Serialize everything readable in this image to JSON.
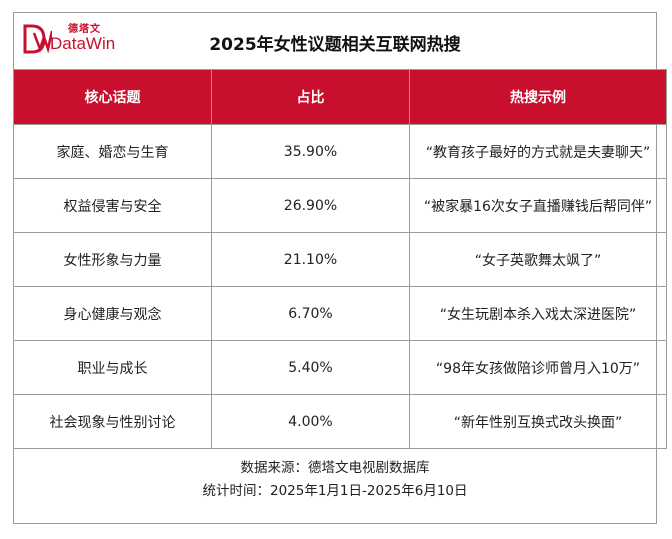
{
  "logo": {
    "cn": "德塔文",
    "en": "DataWin"
  },
  "title": "2025年女性议题相关互联网热搜",
  "table": {
    "headers": [
      "核心话题",
      "占比",
      "热搜示例"
    ],
    "rows": [
      {
        "topic": "家庭、婚恋与生育",
        "share": "35.90%",
        "example": "“教育孩子最好的方式就是夫妻聊天”"
      },
      {
        "topic": "权益侵害与安全",
        "share": "26.90%",
        "example": "“被家暴16次女子直播赚钱后帮同伴”"
      },
      {
        "topic": "女性形象与力量",
        "share": "21.10%",
        "example": "“女子英歌舞太飒了”"
      },
      {
        "topic": "身心健康与观念",
        "share": "6.70%",
        "example": "“女生玩剧本杀入戏太深进医院”"
      },
      {
        "topic": "职业与成长",
        "share": "5.40%",
        "example": "“98年女孩做陪诊师曾月入10万”"
      },
      {
        "topic": "社会现象与性别讨论",
        "share": "4.00%",
        "example": "“新年性别互换式改头换面”"
      }
    ]
  },
  "footer": {
    "source": "数据来源：德塔文电视剧数据库",
    "period": "统计时间：2025年1月1日-2025年6月10日"
  },
  "colors": {
    "accent": "#c8102e"
  }
}
